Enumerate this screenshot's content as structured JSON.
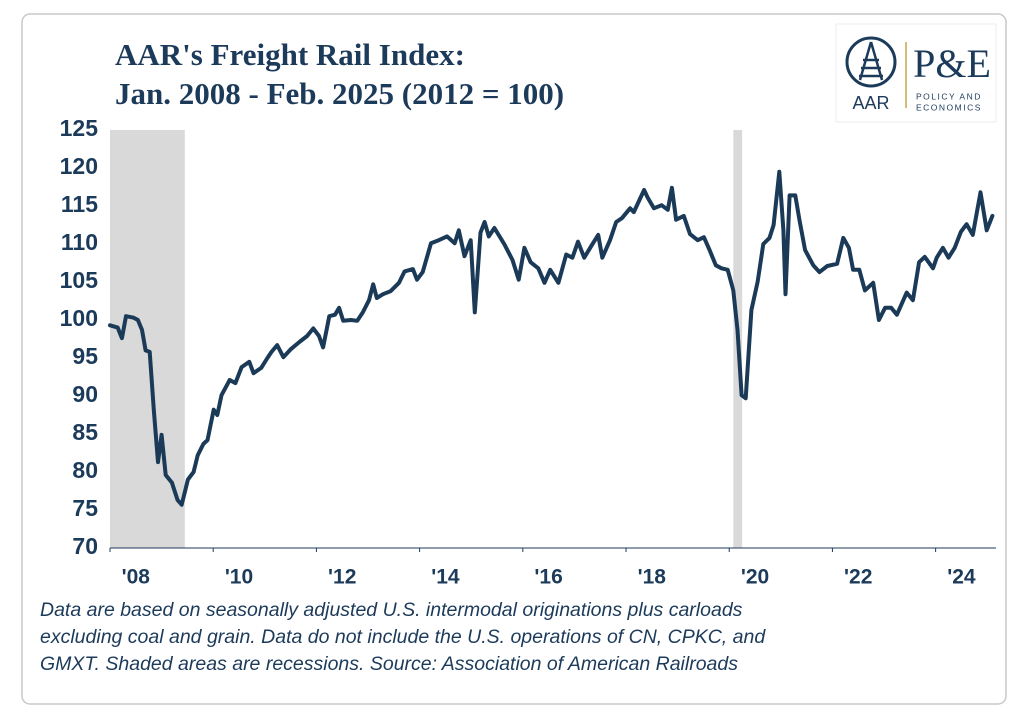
{
  "chart_data": {
    "type": "line",
    "title": [
      "AAR's Freight Rail Index:",
      "Jan. 2008 - Feb. 2025 (2012 = 100)"
    ],
    "logo": {
      "left": "AAR",
      "right": "P&E",
      "subtitle": [
        "POLICY AND",
        "ECONOMICS"
      ]
    },
    "note": [
      "Data are based on seasonally adjusted U.S. intermodal originations plus carloads",
      "excluding coal and grain. Data do not include the U.S. operations of CN, CPKC, and",
      "GMXT. Shaded areas are recessions. Source: Association of American Railroads"
    ],
    "recessions": [
      [
        2008,
        2009.45
      ],
      [
        2020.08,
        2020.25
      ]
    ],
    "recession_color": "#d9d9d9",
    "xlim": [
      2008,
      2025.17
    ],
    "xticks": [
      {
        "value": 2008,
        "label": "'08"
      },
      {
        "value": 2010,
        "label": "'10"
      },
      {
        "value": 2012,
        "label": "'12"
      },
      {
        "value": 2014,
        "label": "'14"
      },
      {
        "value": 2016,
        "label": "'16"
      },
      {
        "value": 2018,
        "label": "'18"
      },
      {
        "value": 2020,
        "label": "'20"
      },
      {
        "value": 2022,
        "label": "'22"
      },
      {
        "value": 2024,
        "label": "'24"
      }
    ],
    "ylim": [
      70,
      125
    ],
    "yticks": [
      70,
      75,
      80,
      85,
      90,
      95,
      100,
      105,
      110,
      115,
      120,
      125
    ],
    "x": [
      2008.0,
      2008.15,
      2008.23,
      2008.31,
      2008.46,
      2008.54,
      2008.62,
      2008.69,
      2008.77,
      2008.85,
      2008.93,
      2009.0,
      2009.08,
      2009.2,
      2009.31,
      2009.39,
      2009.51,
      2009.62,
      2009.7,
      2009.81,
      2009.89,
      2010.01,
      2010.08,
      2010.16,
      2010.32,
      2010.43,
      2010.55,
      2010.7,
      2010.78,
      2010.93,
      2011.05,
      2011.13,
      2011.24,
      2011.36,
      2011.51,
      2011.67,
      2011.82,
      2011.94,
      2012.05,
      2012.13,
      2012.25,
      2012.36,
      2012.44,
      2012.52,
      2012.67,
      2012.79,
      2012.9,
      2013.02,
      2013.1,
      2013.17,
      2013.29,
      2013.44,
      2013.6,
      2013.71,
      2013.87,
      2013.95,
      2014.06,
      2014.22,
      2014.37,
      2014.53,
      2014.68,
      2014.76,
      2014.87,
      2014.99,
      2015.07,
      2015.18,
      2015.26,
      2015.34,
      2015.45,
      2015.64,
      2015.8,
      2015.92,
      2016.03,
      2016.15,
      2016.3,
      2016.42,
      2016.53,
      2016.69,
      2016.84,
      2016.96,
      2017.07,
      2017.19,
      2017.34,
      2017.46,
      2017.54,
      2017.69,
      2017.81,
      2017.92,
      2018.08,
      2018.15,
      2018.35,
      2018.42,
      2018.54,
      2018.69,
      2018.81,
      2018.89,
      2018.97,
      2019.12,
      2019.24,
      2019.39,
      2019.51,
      2019.62,
      2019.74,
      2019.85,
      2019.97,
      2020.08,
      2020.16,
      2020.24,
      2020.32,
      2020.43,
      2020.55,
      2020.66,
      2020.78,
      2020.86,
      2020.97,
      2021.05,
      2021.09,
      2021.17,
      2021.28,
      2021.36,
      2021.47,
      2021.63,
      2021.75,
      2021.9,
      2022.09,
      2022.21,
      2022.32,
      2022.4,
      2022.52,
      2022.63,
      2022.79,
      2022.9,
      2023.02,
      2023.14,
      2023.25,
      2023.44,
      2023.56,
      2023.68,
      2023.79,
      2023.95,
      2024.02,
      2024.14,
      2024.25,
      2024.37,
      2024.49,
      2024.6,
      2024.72,
      2024.87,
      2024.99,
      2025.1
    ],
    "series": [
      {
        "name": "Freight Rail Index",
        "color": "#1b3a57",
        "values": [
          99.3,
          99,
          97.6,
          100.5,
          100.3,
          100,
          98.7,
          96,
          95.8,
          88,
          81.3,
          84.9,
          79.6,
          78.6,
          76.3,
          75.7,
          79,
          80,
          82.2,
          83.7,
          84.2,
          88.2,
          87.5,
          90.1,
          92.1,
          91.7,
          93.8,
          94.5,
          93,
          93.7,
          95,
          95.8,
          96.7,
          95.1,
          96.2,
          97.1,
          97.9,
          98.9,
          97.9,
          96.4,
          100.5,
          100.7,
          101.6,
          99.9,
          100,
          99.9,
          101,
          102.6,
          104.7,
          102.9,
          103.4,
          103.8,
          104.9,
          106.4,
          106.7,
          105.3,
          106.3,
          110.1,
          110.5,
          111,
          110.1,
          111.8,
          108.4,
          110.5,
          101,
          111.5,
          112.9,
          111,
          112.1,
          110,
          107.9,
          105.3,
          109.5,
          107.6,
          106.8,
          104.9,
          106.6,
          104.9,
          108.6,
          108.2,
          110.3,
          108.2,
          109.9,
          111.2,
          108.2,
          110.5,
          112.9,
          113.4,
          114.7,
          114.2,
          117.1,
          116.1,
          114.7,
          115.1,
          114.5,
          117.4,
          113.2,
          113.7,
          111.3,
          110.5,
          110.9,
          109.2,
          107.2,
          106.8,
          106.6,
          103.9,
          98.7,
          90.1,
          89.7,
          101.3,
          105,
          110,
          110.8,
          112.5,
          119.5,
          111.8,
          103.4,
          116.4,
          116.4,
          113.2,
          109.2,
          107.2,
          106.3,
          107.1,
          107.4,
          110.8,
          109.5,
          106.6,
          106.6,
          103.9,
          104.9,
          100,
          101.6,
          101.6,
          100.7,
          103.6,
          102.6,
          107.6,
          108.3,
          106.8,
          108.2,
          109.5,
          108.2,
          109.5,
          111.6,
          112.6,
          111.2,
          116.8,
          111.8,
          113.7
        ]
      }
    ]
  }
}
